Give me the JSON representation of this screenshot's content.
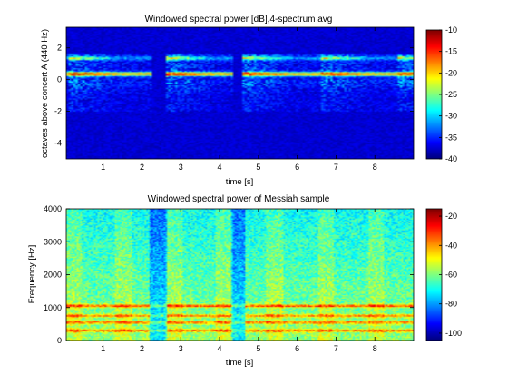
{
  "chart_data": [
    {
      "type": "heatmap",
      "title": "Windowed spectral power [dB],4-spectrum avg",
      "xlabel": "time [s]",
      "ylabel": "octaves above concert A (440 Hz)",
      "xlim": [
        0.05,
        9.0
      ],
      "ylim": [
        -5.0,
        3.3
      ],
      "x_ticks": [
        "1",
        "2",
        "3",
        "4",
        "5",
        "6",
        "7",
        "8"
      ],
      "y_ticks": [
        "-4",
        "-2",
        "0",
        "2"
      ],
      "colorbar": {
        "min": -40,
        "max": -10,
        "ticks": [
          "-10",
          "-15",
          "-20",
          "-25",
          "-30",
          "-35",
          "-40"
        ]
      },
      "background_level_db": -39,
      "strong_bands_octaves": [
        0.35,
        1.35
      ],
      "note_onsets_s": [
        0.1,
        2.6,
        4.6,
        6.6,
        8.6
      ]
    },
    {
      "type": "heatmap",
      "title": "Windowed spectral power of Messiah sample",
      "xlabel": "time [s]",
      "ylabel": "Frequency [Hz]",
      "xlim": [
        0.05,
        9.0
      ],
      "ylim": [
        0,
        4000
      ],
      "x_ticks": [
        "1",
        "2",
        "3",
        "4",
        "5",
        "6",
        "7",
        "8"
      ],
      "y_ticks": [
        "0",
        "1000",
        "2000",
        "3000",
        "4000"
      ],
      "colorbar": {
        "min": -105,
        "max": -15,
        "ticks": [
          "-20",
          "-40",
          "-60",
          "-80",
          "-100"
        ]
      },
      "background_level_db": -55,
      "strong_bands_hz": [
        1050,
        550,
        300
      ]
    }
  ]
}
